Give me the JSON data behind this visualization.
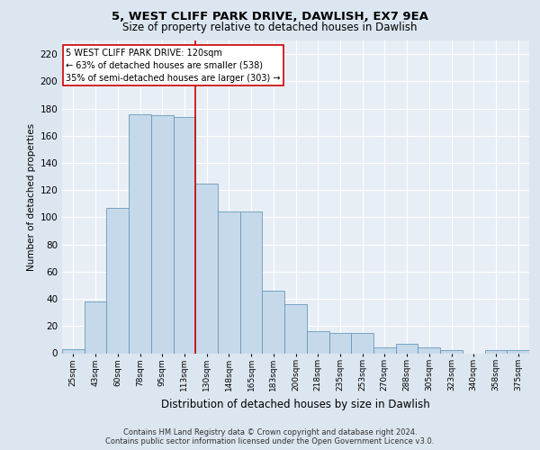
{
  "title1": "5, WEST CLIFF PARK DRIVE, DAWLISH, EX7 9EA",
  "title2": "Size of property relative to detached houses in Dawlish",
  "xlabel": "Distribution of detached houses by size in Dawlish",
  "ylabel": "Number of detached properties",
  "categories": [
    "25sqm",
    "43sqm",
    "60sqm",
    "78sqm",
    "95sqm",
    "113sqm",
    "130sqm",
    "148sqm",
    "165sqm",
    "183sqm",
    "200sqm",
    "218sqm",
    "235sqm",
    "253sqm",
    "270sqm",
    "288sqm",
    "305sqm",
    "323sqm",
    "340sqm",
    "358sqm",
    "375sqm"
  ],
  "values": [
    3,
    38,
    107,
    176,
    175,
    174,
    125,
    104,
    104,
    46,
    36,
    16,
    15,
    15,
    4,
    7,
    4,
    2,
    0,
    2,
    2
  ],
  "bar_color": "#c6d9ea",
  "bar_edge_color": "#6699bb",
  "vline_x_index": 5,
  "vline_color": "#cc0000",
  "annotation_text": "5 WEST CLIFF PARK DRIVE: 120sqm\n← 63% of detached houses are smaller (538)\n35% of semi-detached houses are larger (303) →",
  "annotation_box_color": "white",
  "annotation_box_edge": "#cc0000",
  "ylim": [
    0,
    230
  ],
  "yticks": [
    0,
    20,
    40,
    60,
    80,
    100,
    120,
    140,
    160,
    180,
    200,
    220
  ],
  "footer1": "Contains HM Land Registry data © Crown copyright and database right 2024.",
  "footer2": "Contains public sector information licensed under the Open Government Licence v3.0.",
  "bg_color": "#dce6f0",
  "plot_bg_color": "#e8eef6",
  "title1_fontsize": 9.5,
  "title2_fontsize": 8.5,
  "ylabel_fontsize": 7.5,
  "xlabel_fontsize": 8.5,
  "ytick_fontsize": 7.5,
  "xtick_fontsize": 6.5,
  "annotation_fontsize": 7.0,
  "footer_fontsize": 6.0
}
